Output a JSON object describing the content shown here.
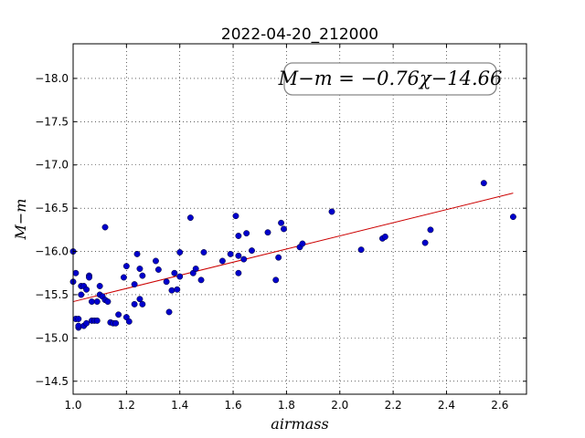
{
  "chart_data": {
    "type": "scatter",
    "title": "2022-04-20_212000",
    "xlabel": "airmass",
    "ylabel": "M−m",
    "xlim": [
      1.0,
      2.7
    ],
    "ylim": [
      -18.4,
      -14.35
    ],
    "y_inverted": true,
    "grid": true,
    "x_ticks": [
      1.0,
      1.2,
      1.4,
      1.6,
      1.8,
      2.0,
      2.2,
      2.4,
      2.6
    ],
    "x_tick_labels": [
      "1.0",
      "1.2",
      "1.4",
      "1.6",
      "1.8",
      "2.0",
      "2.2",
      "2.4",
      "2.6"
    ],
    "y_ticks": [
      -14.5,
      -15.0,
      -15.5,
      -16.0,
      -16.5,
      -17.0,
      -17.5,
      -18.0
    ],
    "y_tick_labels": [
      "−14.5",
      "−15.0",
      "−15.5",
      "−16.0",
      "−16.5",
      "−17.0",
      "−17.5",
      "−18.0"
    ],
    "annotation": "M−m = −0.76χ−14.66",
    "annotation_placement": "top-right",
    "fit": {
      "slope": -0.76,
      "intercept": -14.66,
      "x_range": [
        1.0,
        2.65
      ],
      "color": "#cc0000"
    },
    "point_color": "#0000cc",
    "series": [
      {
        "x": [
          1.0,
          1.0,
          1.01,
          1.01,
          1.02,
          1.02,
          1.02,
          1.03,
          1.03,
          1.04,
          1.04,
          1.05,
          1.05,
          1.06,
          1.06,
          1.07,
          1.07,
          1.08,
          1.09,
          1.09,
          1.1,
          1.1,
          1.11,
          1.12,
          1.12,
          1.13,
          1.14,
          1.15,
          1.16,
          1.17,
          1.19,
          1.2,
          1.2,
          1.21,
          1.23,
          1.23,
          1.24,
          1.25,
          1.25,
          1.26,
          1.26,
          1.31,
          1.32,
          1.35,
          1.36,
          1.37,
          1.38,
          1.39,
          1.4,
          1.4,
          1.44,
          1.45,
          1.46,
          1.48,
          1.49,
          1.56,
          1.59,
          1.61,
          1.62,
          1.62,
          1.62,
          1.64,
          1.65,
          1.67,
          1.73,
          1.76,
          1.77,
          1.78,
          1.79,
          1.85,
          1.86,
          1.97,
          2.08,
          2.16,
          2.17,
          2.32,
          2.34,
          2.54,
          2.65
        ],
        "y": [
          -15.65,
          -16.0,
          -15.22,
          -15.75,
          -15.12,
          -15.14,
          -15.22,
          -15.5,
          -15.6,
          -15.14,
          -15.6,
          -15.17,
          -15.56,
          -15.72,
          -15.7,
          -15.2,
          -15.42,
          -15.2,
          -15.42,
          -15.2,
          -15.6,
          -15.5,
          -15.48,
          -15.44,
          -16.28,
          -15.42,
          -15.18,
          -15.17,
          -15.17,
          -15.27,
          -15.7,
          -15.83,
          -15.24,
          -15.19,
          -15.62,
          -15.39,
          -15.97,
          -15.8,
          -15.45,
          -15.72,
          -15.39,
          -15.89,
          -15.79,
          -15.65,
          -15.3,
          -15.55,
          -15.75,
          -15.56,
          -15.99,
          -15.71,
          -16.39,
          -15.75,
          -15.8,
          -15.67,
          -15.99,
          -15.89,
          -15.97,
          -16.41,
          -15.75,
          -16.18,
          -15.95,
          -15.91,
          -16.21,
          -16.01,
          -16.22,
          -15.67,
          -15.93,
          -16.33,
          -16.26,
          -16.05,
          -16.09,
          -16.46,
          -16.02,
          -16.15,
          -16.17,
          -16.1,
          -16.25,
          -16.79,
          -16.4
        ]
      }
    ]
  }
}
